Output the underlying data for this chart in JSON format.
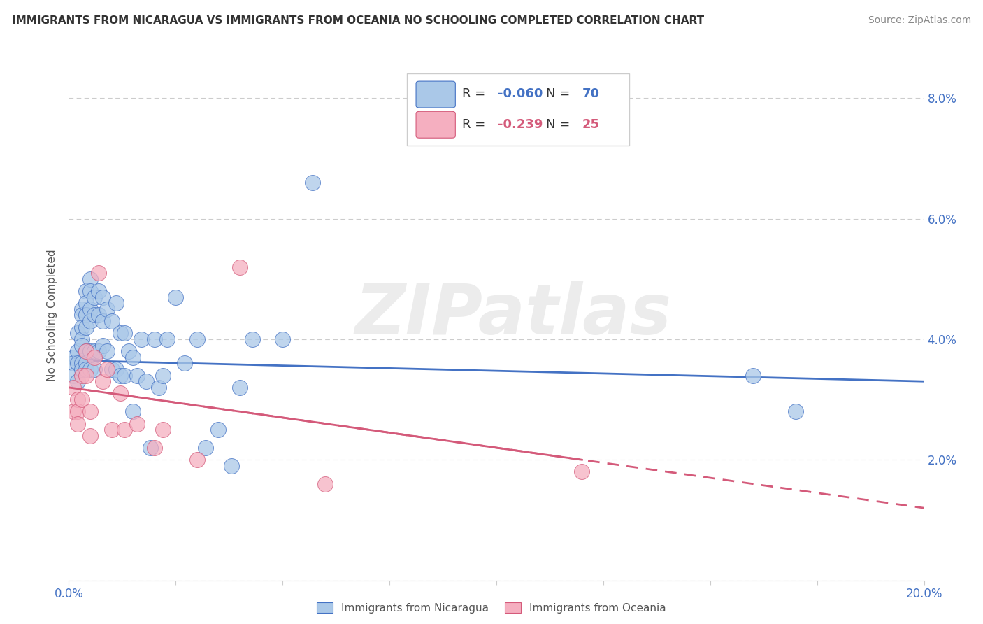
{
  "title": "IMMIGRANTS FROM NICARAGUA VS IMMIGRANTS FROM OCEANIA NO SCHOOLING COMPLETED CORRELATION CHART",
  "source": "Source: ZipAtlas.com",
  "ylabel": "No Schooling Completed",
  "xlim": [
    0.0,
    0.2
  ],
  "ylim": [
    0.0,
    0.088
  ],
  "nicaragua_R": -0.06,
  "nicaragua_N": 70,
  "oceania_R": -0.239,
  "oceania_N": 25,
  "nicaragua_color": "#aac8e8",
  "oceania_color": "#f5afc0",
  "nicaragua_line_color": "#4472c4",
  "oceania_line_color": "#d45a7a",
  "watermark": "ZIPatlas",
  "nicaragua_x": [
    0.001,
    0.001,
    0.001,
    0.002,
    0.002,
    0.002,
    0.002,
    0.003,
    0.003,
    0.003,
    0.003,
    0.003,
    0.003,
    0.003,
    0.004,
    0.004,
    0.004,
    0.004,
    0.004,
    0.004,
    0.004,
    0.005,
    0.005,
    0.005,
    0.005,
    0.005,
    0.005,
    0.006,
    0.006,
    0.006,
    0.006,
    0.007,
    0.007,
    0.007,
    0.008,
    0.008,
    0.008,
    0.009,
    0.009,
    0.01,
    0.01,
    0.011,
    0.011,
    0.012,
    0.012,
    0.013,
    0.013,
    0.014,
    0.015,
    0.015,
    0.016,
    0.017,
    0.018,
    0.019,
    0.02,
    0.021,
    0.022,
    0.023,
    0.025,
    0.027,
    0.03,
    0.032,
    0.035,
    0.038,
    0.04,
    0.043,
    0.05,
    0.057,
    0.16,
    0.17
  ],
  "nicaragua_y": [
    0.037,
    0.036,
    0.034,
    0.041,
    0.038,
    0.036,
    0.033,
    0.045,
    0.044,
    0.042,
    0.04,
    0.039,
    0.036,
    0.035,
    0.048,
    0.046,
    0.044,
    0.042,
    0.038,
    0.036,
    0.035,
    0.05,
    0.048,
    0.045,
    0.043,
    0.038,
    0.035,
    0.047,
    0.044,
    0.038,
    0.035,
    0.048,
    0.044,
    0.038,
    0.047,
    0.043,
    0.039,
    0.045,
    0.038,
    0.043,
    0.035,
    0.046,
    0.035,
    0.041,
    0.034,
    0.041,
    0.034,
    0.038,
    0.037,
    0.028,
    0.034,
    0.04,
    0.033,
    0.022,
    0.04,
    0.032,
    0.034,
    0.04,
    0.047,
    0.036,
    0.04,
    0.022,
    0.025,
    0.019,
    0.032,
    0.04,
    0.04,
    0.066,
    0.034,
    0.028
  ],
  "oceania_x": [
    0.001,
    0.001,
    0.002,
    0.002,
    0.002,
    0.003,
    0.003,
    0.004,
    0.004,
    0.005,
    0.005,
    0.006,
    0.007,
    0.008,
    0.009,
    0.01,
    0.012,
    0.013,
    0.016,
    0.02,
    0.022,
    0.03,
    0.04,
    0.06,
    0.12
  ],
  "oceania_y": [
    0.032,
    0.028,
    0.03,
    0.028,
    0.026,
    0.034,
    0.03,
    0.038,
    0.034,
    0.028,
    0.024,
    0.037,
    0.051,
    0.033,
    0.035,
    0.025,
    0.031,
    0.025,
    0.026,
    0.022,
    0.025,
    0.02,
    0.052,
    0.016,
    0.018
  ],
  "nic_line_x": [
    0.0,
    0.2
  ],
  "nic_line_y": [
    0.0365,
    0.033
  ],
  "oce_line_x": [
    0.0,
    0.2
  ],
  "oce_line_y": [
    0.032,
    0.012
  ]
}
